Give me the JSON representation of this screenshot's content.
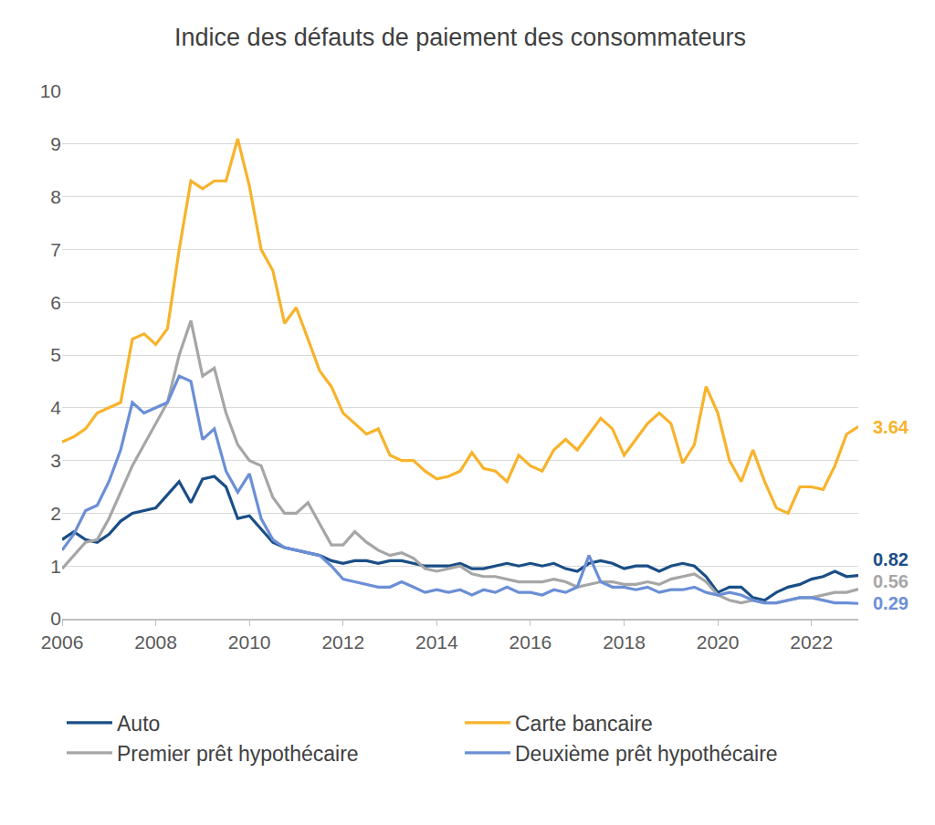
{
  "chart_data": {
    "type": "line",
    "title": "Indice des défauts de paiement des consommateurs",
    "x": [
      2006,
      2006.25,
      2006.5,
      2006.75,
      2007,
      2007.25,
      2007.5,
      2007.75,
      2008,
      2008.25,
      2008.5,
      2008.75,
      2009,
      2009.25,
      2009.5,
      2009.75,
      2010,
      2010.25,
      2010.5,
      2010.75,
      2011,
      2011.25,
      2011.5,
      2011.75,
      2012,
      2012.25,
      2012.5,
      2012.75,
      2013,
      2013.25,
      2013.5,
      2013.75,
      2014,
      2014.25,
      2014.5,
      2014.75,
      2015,
      2015.25,
      2015.5,
      2015.75,
      2016,
      2016.25,
      2016.5,
      2016.75,
      2017,
      2017.25,
      2017.5,
      2017.75,
      2018,
      2018.25,
      2018.5,
      2018.75,
      2019,
      2019.25,
      2019.5,
      2019.75,
      2020,
      2020.25,
      2020.5,
      2020.75,
      2021,
      2021.25,
      2021.5,
      2021.75,
      2022,
      2022.25,
      2022.5,
      2022.75,
      2023
    ],
    "series": [
      {
        "name": "Auto",
        "color": "#1a4e86",
        "end_label": "0.82",
        "values": [
          1.5,
          1.65,
          1.5,
          1.45,
          1.6,
          1.85,
          2.0,
          2.05,
          2.1,
          2.35,
          2.6,
          2.2,
          2.65,
          2.7,
          2.5,
          1.9,
          1.95,
          1.7,
          1.45,
          1.35,
          1.3,
          1.25,
          1.2,
          1.1,
          1.05,
          1.1,
          1.1,
          1.05,
          1.1,
          1.1,
          1.05,
          1.0,
          1.0,
          1.0,
          1.05,
          0.95,
          0.95,
          1.0,
          1.05,
          1.0,
          1.05,
          1.0,
          1.05,
          0.95,
          0.9,
          1.05,
          1.1,
          1.05,
          0.95,
          1.0,
          1.0,
          0.9,
          1.0,
          1.05,
          1.0,
          0.8,
          0.5,
          0.6,
          0.6,
          0.4,
          0.35,
          0.5,
          0.6,
          0.65,
          0.75,
          0.8,
          0.9,
          0.8,
          0.82
        ]
      },
      {
        "name": "Carte bancaire",
        "color": "#f7b32b",
        "end_label": "3.64",
        "values": [
          3.35,
          3.45,
          3.6,
          3.9,
          4.0,
          4.1,
          5.3,
          5.4,
          5.2,
          5.5,
          7.0,
          8.3,
          8.15,
          8.3,
          8.3,
          9.1,
          8.2,
          7.0,
          6.6,
          5.6,
          5.9,
          5.3,
          4.7,
          4.4,
          3.9,
          3.7,
          3.5,
          3.6,
          3.1,
          3.0,
          3.0,
          2.8,
          2.65,
          2.7,
          2.8,
          3.15,
          2.85,
          2.8,
          2.6,
          3.1,
          2.9,
          2.8,
          3.2,
          3.4,
          3.2,
          3.5,
          3.8,
          3.6,
          3.1,
          3.4,
          3.7,
          3.9,
          3.7,
          2.95,
          3.3,
          4.4,
          3.9,
          3.0,
          2.6,
          3.2,
          2.6,
          2.1,
          2.0,
          2.5,
          2.5,
          2.45,
          2.9,
          3.5,
          3.64
        ]
      },
      {
        "name": "Premier prêt hypothécaire",
        "color": "#a6a6a6",
        "end_label": "0.56",
        "values": [
          0.95,
          1.2,
          1.45,
          1.5,
          1.9,
          2.4,
          2.9,
          3.3,
          3.7,
          4.1,
          5.0,
          5.65,
          4.6,
          4.75,
          3.9,
          3.3,
          3.0,
          2.9,
          2.3,
          2.0,
          2.0,
          2.2,
          1.8,
          1.4,
          1.4,
          1.65,
          1.45,
          1.3,
          1.2,
          1.25,
          1.15,
          0.95,
          0.9,
          0.95,
          1.0,
          0.85,
          0.8,
          0.8,
          0.75,
          0.7,
          0.7,
          0.7,
          0.75,
          0.7,
          0.6,
          0.65,
          0.7,
          0.7,
          0.65,
          0.65,
          0.7,
          0.65,
          0.75,
          0.8,
          0.85,
          0.7,
          0.45,
          0.35,
          0.3,
          0.35,
          0.3,
          0.3,
          0.35,
          0.4,
          0.4,
          0.45,
          0.5,
          0.5,
          0.56
        ]
      },
      {
        "name": "Deuxième prêt hypothécaire",
        "color": "#6b8fd6",
        "end_label": "0.29",
        "values": [
          1.3,
          1.6,
          2.05,
          2.15,
          2.6,
          3.2,
          4.1,
          3.9,
          4.0,
          4.1,
          4.6,
          4.5,
          3.4,
          3.6,
          2.8,
          2.4,
          2.75,
          1.9,
          1.5,
          1.35,
          1.3,
          1.25,
          1.2,
          1.0,
          0.75,
          0.7,
          0.65,
          0.6,
          0.6,
          0.7,
          0.6,
          0.5,
          0.55,
          0.5,
          0.55,
          0.45,
          0.55,
          0.5,
          0.6,
          0.5,
          0.5,
          0.45,
          0.55,
          0.5,
          0.6,
          1.2,
          0.7,
          0.6,
          0.6,
          0.55,
          0.6,
          0.5,
          0.55,
          0.55,
          0.6,
          0.5,
          0.45,
          0.5,
          0.45,
          0.35,
          0.3,
          0.3,
          0.35,
          0.4,
          0.4,
          0.35,
          0.3,
          0.3,
          0.29
        ]
      }
    ],
    "xlim": [
      2006,
      2023
    ],
    "xticks": [
      2006,
      2008,
      2010,
      2012,
      2014,
      2016,
      2018,
      2020,
      2022
    ],
    "ylim": [
      0,
      10
    ],
    "yticks": [
      0,
      1,
      2,
      3,
      4,
      5,
      6,
      7,
      8,
      9,
      10
    ],
    "grid": true,
    "legend": "bottom"
  }
}
